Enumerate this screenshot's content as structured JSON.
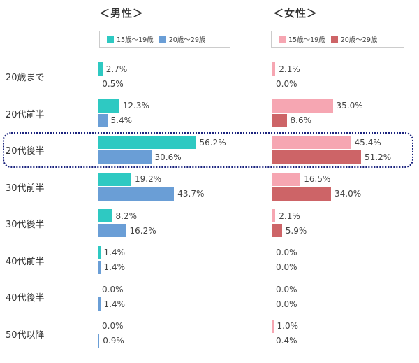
{
  "chart_data": {
    "type": "bar",
    "categories": [
      "20歳まで",
      "20代前半",
      "20代後半",
      "30代前半",
      "30代後半",
      "40代前半",
      "40代後半",
      "50代以降"
    ],
    "panels": [
      {
        "title": "＜男性＞",
        "series": [
          {
            "name": "15歳～19歳",
            "color": "#2ec9c2",
            "values": [
              2.7,
              12.3,
              56.2,
              19.2,
              8.2,
              1.4,
              0.0,
              0.0
            ],
            "labels": [
              "2.7%",
              "12.3%",
              "56.2%",
              "19.2%",
              "8.2%",
              "1.4%",
              "0.0%",
              "0.0%"
            ]
          },
          {
            "name": "20歳～29歳",
            "color": "#6a9ed6",
            "values": [
              0.5,
              5.4,
              30.6,
              43.7,
              16.2,
              1.4,
              1.4,
              0.9
            ],
            "labels": [
              "0.5%",
              "5.4%",
              "30.6%",
              "43.7%",
              "16.2%",
              "1.4%",
              "1.4%",
              "0.9%"
            ]
          }
        ]
      },
      {
        "title": "＜女性＞",
        "series": [
          {
            "name": "15歳～19歳",
            "color": "#f6a6b2",
            "values": [
              2.1,
              35.0,
              45.4,
              16.5,
              2.1,
              0.0,
              0.0,
              1.0
            ],
            "labels": [
              "2.1%",
              "35.0%",
              "45.4%",
              "16.5%",
              "2.1%",
              "0.0%",
              "0.0%",
              "1.0%"
            ]
          },
          {
            "name": "20歳～29歳",
            "color": "#cd6467",
            "values": [
              0.0,
              8.6,
              51.2,
              34.0,
              5.9,
              0.0,
              0.0,
              0.4
            ],
            "labels": [
              "0.0%",
              "8.6%",
              "51.2%",
              "34.0%",
              "5.9%",
              "0.0%",
              "0.0%",
              "0.4%"
            ]
          }
        ]
      }
    ],
    "highlighted_category": "20代後半"
  }
}
